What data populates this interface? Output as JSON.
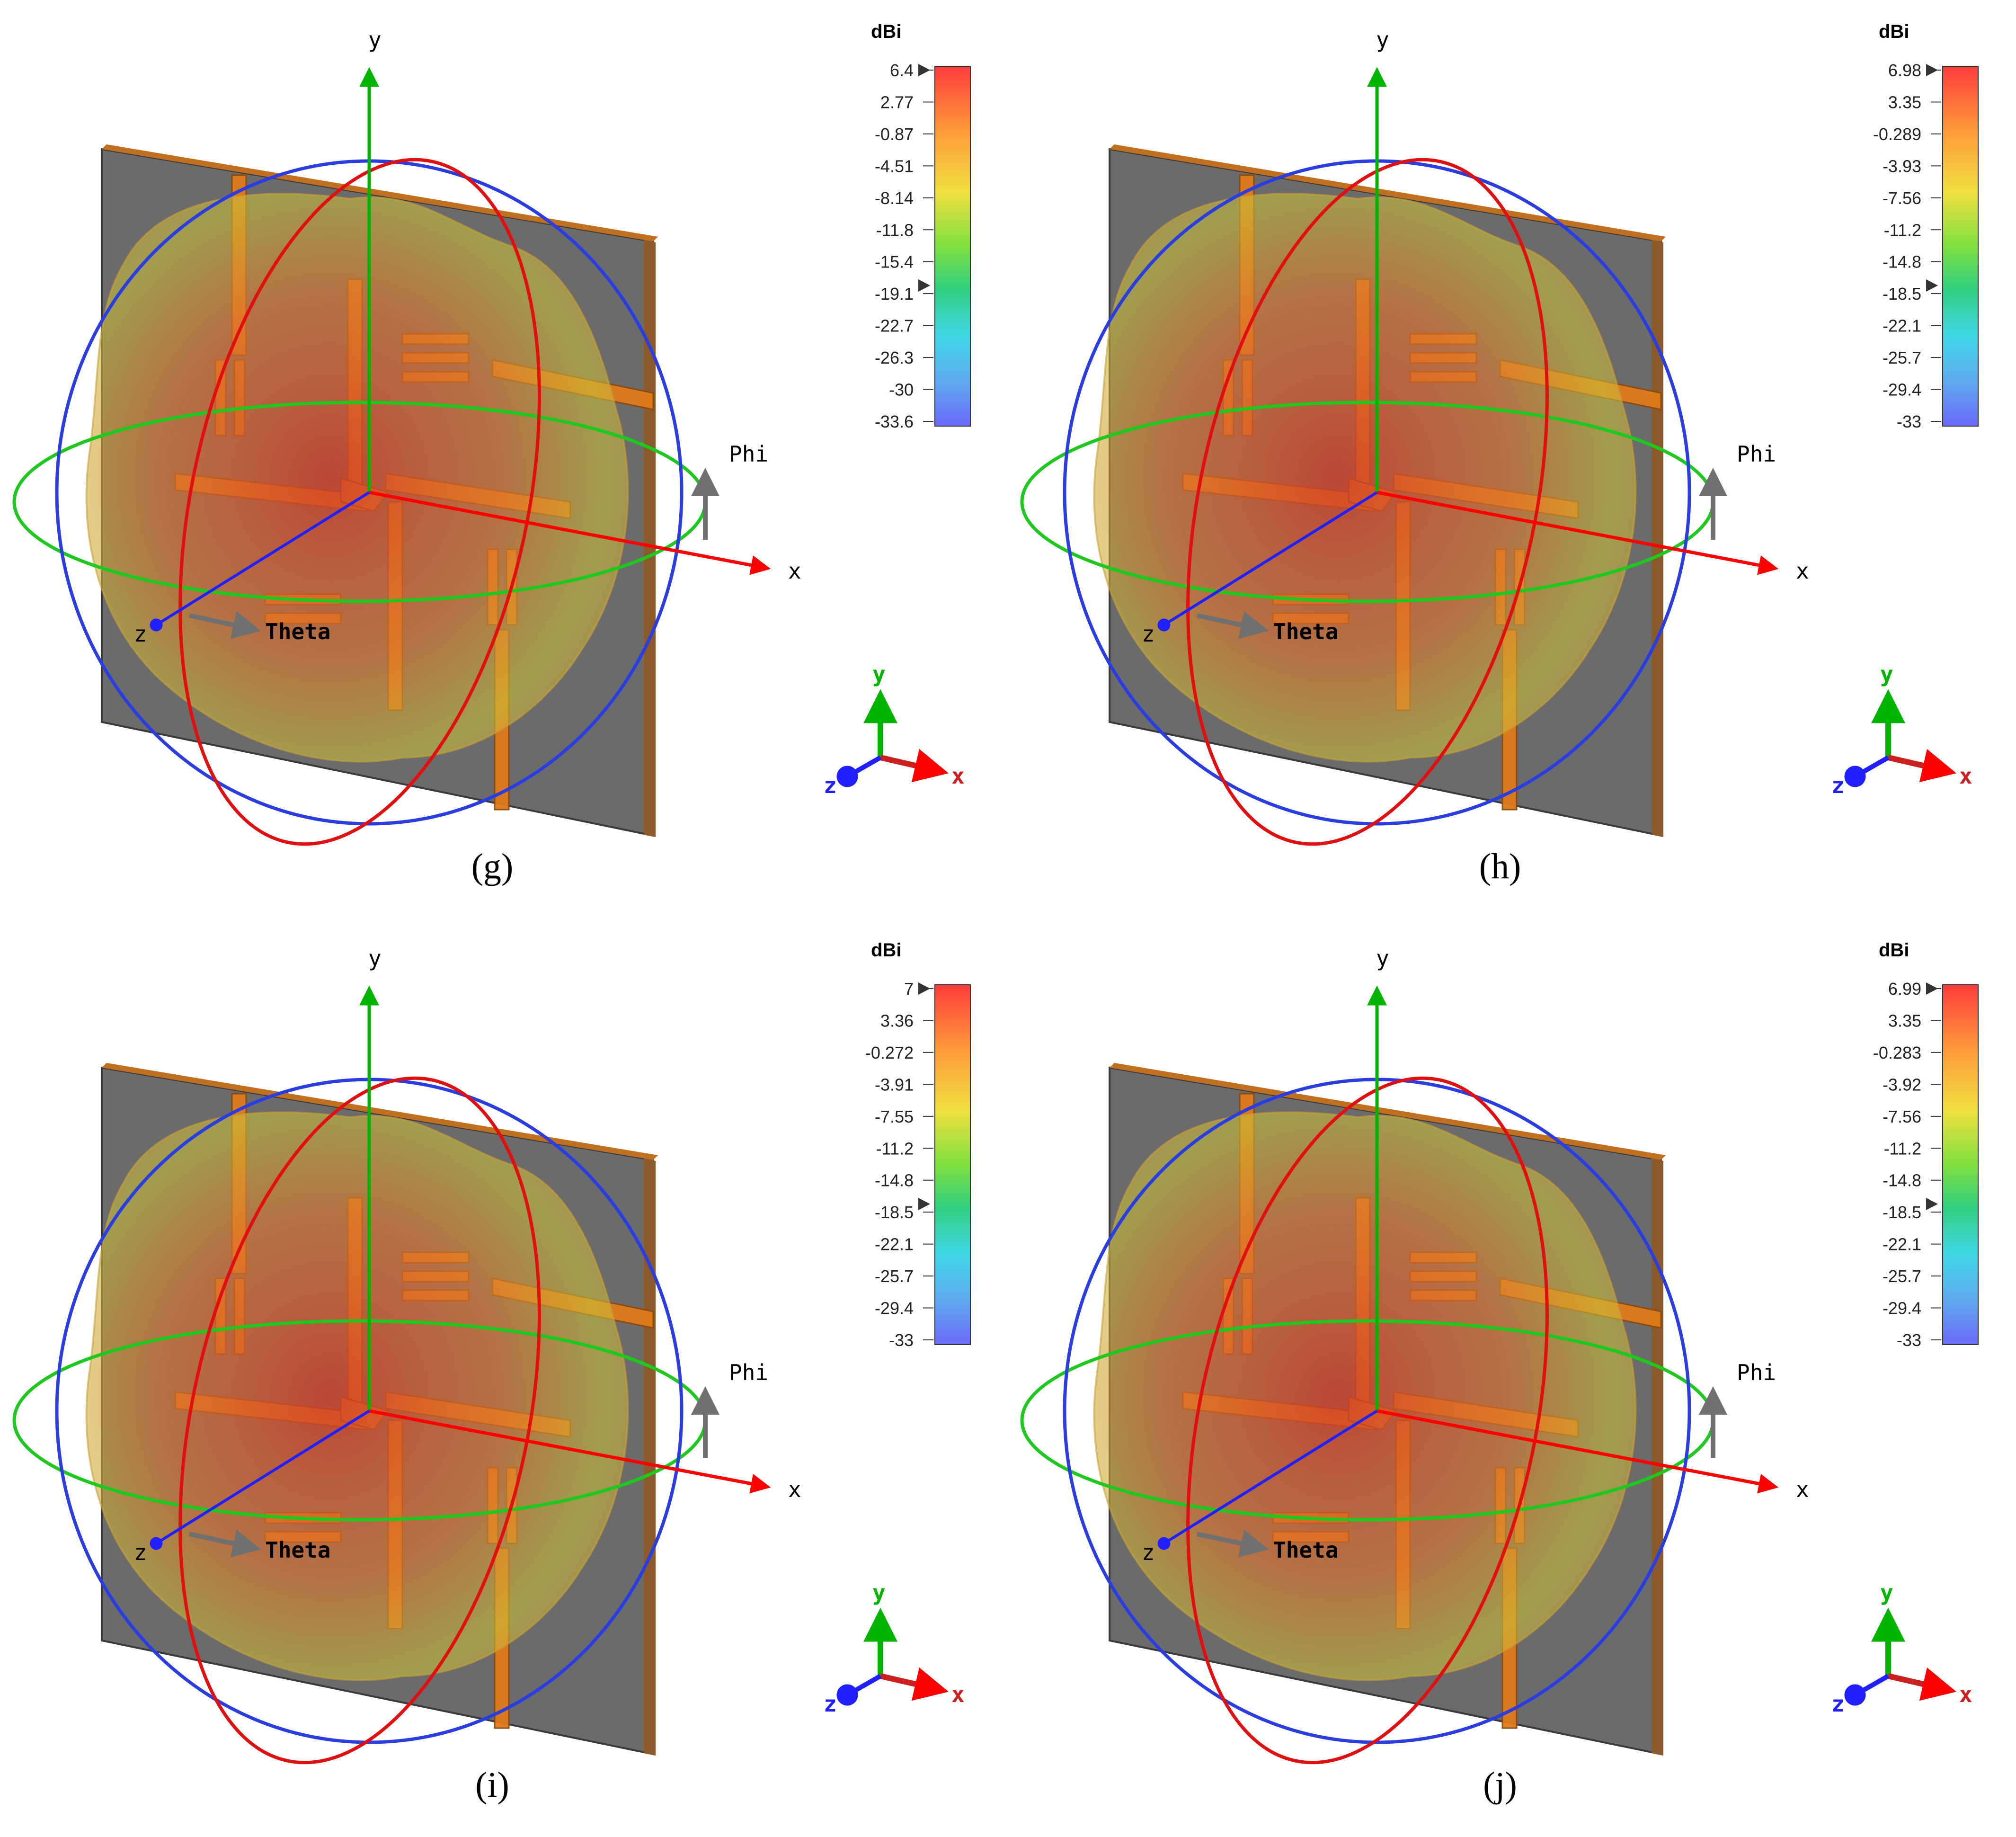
{
  "panels": [
    {
      "caption": "(g)",
      "colorbar": {
        "unit": "dBi",
        "ticks": [
          "6.4",
          "2.77",
          "-0.87",
          "-4.51",
          "-8.14",
          "-11.8",
          "-15.4",
          "-19.1",
          "-22.7",
          "-26.3",
          "-30",
          "-33.6"
        ]
      },
      "axes": {
        "y": "y",
        "x": "x",
        "z": "z",
        "phi": "Phi",
        "theta": "Theta"
      },
      "triad": {
        "x": "x",
        "y": "y",
        "z": "z"
      }
    },
    {
      "caption": "(h)",
      "colorbar": {
        "unit": "dBi",
        "ticks": [
          "6.98",
          "3.35",
          "-0.289",
          "-3.93",
          "-7.56",
          "-11.2",
          "-14.8",
          "-18.5",
          "-22.1",
          "-25.7",
          "-29.4",
          "-33"
        ]
      },
      "axes": {
        "y": "y",
        "x": "x",
        "z": "z",
        "phi": "Phi",
        "theta": "Theta"
      },
      "triad": {
        "x": "x",
        "y": "y",
        "z": "z"
      }
    },
    {
      "caption": "(i)",
      "colorbar": {
        "unit": "dBi",
        "ticks": [
          "7",
          "3.36",
          "-0.272",
          "-3.91",
          "-7.55",
          "-11.2",
          "-14.8",
          "-18.5",
          "-22.1",
          "-25.7",
          "-29.4",
          "-33"
        ]
      },
      "axes": {
        "y": "y",
        "x": "x",
        "z": "z",
        "phi": "Phi",
        "theta": "Theta"
      },
      "triad": {
        "x": "x",
        "y": "y",
        "z": "z"
      }
    },
    {
      "caption": "(j)",
      "colorbar": {
        "unit": "dBi",
        "ticks": [
          "6.99",
          "3.35",
          "-0.283",
          "-3.92",
          "-7.56",
          "-11.2",
          "-14.8",
          "-18.5",
          "-22.1",
          "-25.7",
          "-29.4",
          "-33"
        ]
      },
      "axes": {
        "y": "y",
        "x": "x",
        "z": "z",
        "phi": "Phi",
        "theta": "Theta"
      },
      "triad": {
        "x": "x",
        "y": "y",
        "z": "z"
      }
    }
  ],
  "colors": {
    "board": "#6b6b6b",
    "copper": "#e07b1a",
    "pattern_warm": "#d9552a",
    "pattern_mid": "#c9c13a",
    "axis_x": "#ff0000",
    "axis_y": "#00b400",
    "axis_z": "#2020ff",
    "ring_blue": "#2a3de0",
    "ring_red": "#e01010",
    "ring_green": "#1ec81e"
  }
}
